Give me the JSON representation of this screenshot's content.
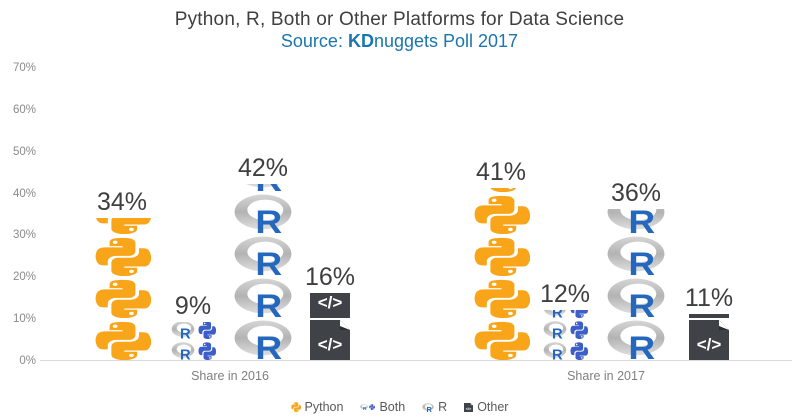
{
  "title": "Python, R, Both or Other Platforms for Data Science",
  "subtitle": {
    "prefix": "Source: ",
    "brand_bold": "KD",
    "rest": "nuggets Poll 2017"
  },
  "colors": {
    "title_text": "#3f3f3f",
    "subtitle_blue": "#1a76ad",
    "python_orange": "#f9a51a",
    "python_blue": "#3d5ec6",
    "r_letter_blue": "#2368be",
    "ring_gray": "#c4c4c4",
    "other_dark": "#3f4347",
    "axis_text": "#8a8a8a",
    "value_text": "#3f3f3f",
    "baseline_gray": "#d9d9d9"
  },
  "y_axis": {
    "ticks": [
      "70%",
      "60%",
      "50%",
      "40%",
      "30%",
      "20%",
      "10%",
      "0%"
    ],
    "min": 0,
    "max": 70,
    "unit": "%"
  },
  "chart_data": {
    "type": "bar",
    "style": "pictogram-stacked-icons",
    "title": "Python, R, Both or Other Platforms for Data Science",
    "subtitle": "Source: KDnuggets Poll 2017",
    "categories": [
      "Share in 2016",
      "Share in 2017"
    ],
    "series": [
      {
        "name": "Python",
        "icon": "python",
        "values": [
          34,
          41
        ]
      },
      {
        "name": "Both",
        "icon": "both",
        "values": [
          9,
          12
        ]
      },
      {
        "name": "R",
        "icon": "r",
        "values": [
          42,
          36
        ]
      },
      {
        "name": "Other",
        "icon": "code",
        "values": [
          16,
          11
        ]
      }
    ],
    "value_labels": [
      "34%",
      "9%",
      "42%",
      "16%",
      "41%",
      "12%",
      "36%",
      "11%"
    ],
    "ylim": [
      0,
      70
    ],
    "grid": false,
    "legend_position": "bottom"
  },
  "legend": {
    "items": [
      {
        "label": "Python",
        "icon": "python"
      },
      {
        "label": "Both",
        "icon": "both"
      },
      {
        "label": "R",
        "icon": "r"
      },
      {
        "label": "Other",
        "icon": "code"
      }
    ]
  }
}
